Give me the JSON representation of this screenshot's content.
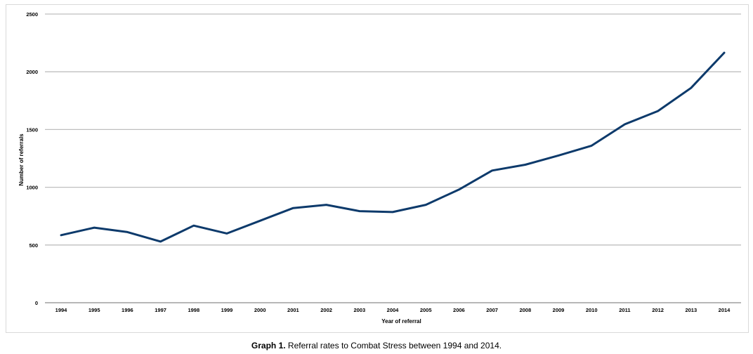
{
  "chart_data": {
    "type": "line",
    "xlabel": "Year of referral",
    "ylabel": "Number of referrals",
    "ylim": [
      0,
      2500
    ],
    "yticks": [
      0,
      500,
      1000,
      1500,
      2000,
      2500
    ],
    "categories": [
      "1994",
      "1995",
      "1996",
      "1997",
      "1998",
      "1999",
      "2000",
      "2001",
      "2002",
      "2003",
      "2004",
      "2005",
      "2006",
      "2007",
      "2008",
      "2009",
      "2010",
      "2011",
      "2012",
      "2013",
      "2014"
    ],
    "series": [
      {
        "values": [
          585,
          650,
          612,
          530,
          668,
          600,
          710,
          820,
          848,
          793,
          785,
          848,
          980,
          1145,
          1195,
          1275,
          1360,
          1545,
          1660,
          1860,
          2165
        ]
      }
    ],
    "grid": true,
    "legend": "none",
    "line_color": "#0d3a6b",
    "grid_color": "#bfbfbf"
  },
  "caption": {
    "label": "Graph 1.",
    "text": " Referral rates to Combat Stress between 1994 and 2014."
  }
}
